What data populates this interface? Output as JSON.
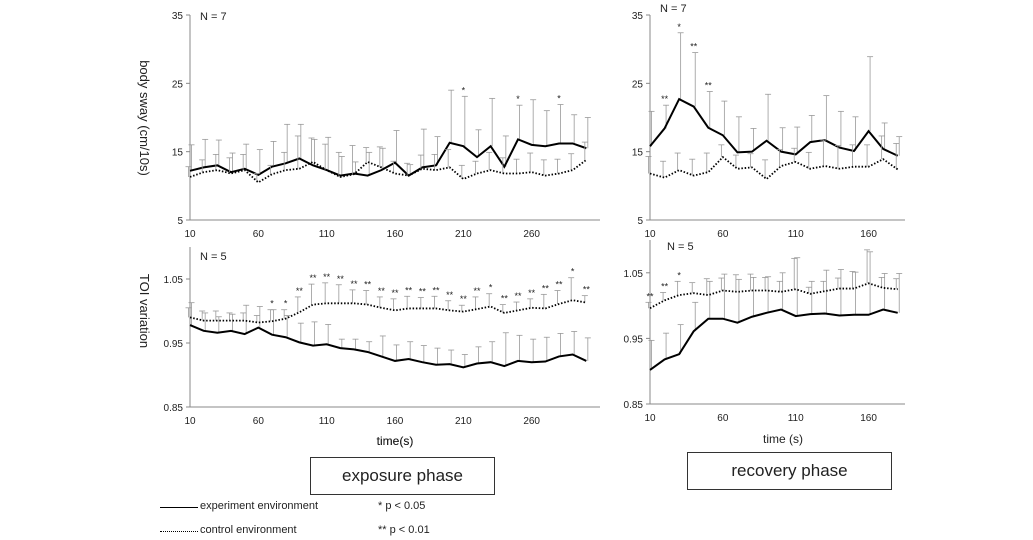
{
  "panels": [
    {
      "id": "sway-exposure",
      "n_label": "N = 7",
      "ylabel": "body sway (cm/10s)",
      "y_ticks": [
        "35",
        "25",
        "15",
        "5"
      ],
      "x_ticks": [
        "10",
        "60",
        "110",
        "160",
        "210",
        "260"
      ],
      "xlabel": "time(s)"
    },
    {
      "id": "sway-recovery",
      "n_label": "N = 7",
      "ylabel": "",
      "y_ticks": [
        "35",
        "25",
        "15",
        "5"
      ],
      "x_ticks": [
        "10",
        "60",
        "110",
        "160"
      ],
      "xlabel": ""
    },
    {
      "id": "toi-exposure",
      "n_label": "N = 5",
      "ylabel": "TOI variation",
      "y_ticks": [
        "1.05",
        "0.95",
        "0.85"
      ],
      "x_ticks": [
        "10",
        "60",
        "110",
        "160",
        "210",
        "260"
      ],
      "xlabel": "time(s)"
    },
    {
      "id": "toi-recovery",
      "n_label": "N = 5",
      "ylabel": "",
      "y_ticks": [
        "1.05",
        "0.95",
        "0.85"
      ],
      "x_ticks": [
        "10",
        "60",
        "110",
        "160"
      ],
      "xlabel": "time (s)"
    }
  ],
  "phase_labels": {
    "exposure": "exposure phase",
    "recovery": "recovery phase"
  },
  "legend": {
    "experiment": "experiment environment",
    "control": "control environment",
    "sig1": "*  p < 0.05",
    "sig2": "** p < 0.01"
  },
  "chart_data": [
    {
      "type": "line",
      "id": "sway-exposure",
      "ylabel": "body sway (cm/10s)",
      "xlabel": "time(s)",
      "ylim": [
        5,
        35
      ],
      "x": [
        10,
        20,
        30,
        40,
        50,
        60,
        70,
        80,
        90,
        100,
        110,
        120,
        130,
        140,
        150,
        160,
        170,
        180,
        190,
        200,
        210,
        220,
        230,
        240,
        250,
        260,
        270,
        280,
        290,
        300
      ],
      "series": [
        {
          "name": "experiment environment",
          "values": [
            12.2,
            12.7,
            13.0,
            12.0,
            12.5,
            11.6,
            12.8,
            13.3,
            14.0,
            13.0,
            12.3,
            11.5,
            11.8,
            11.5,
            12.3,
            13.4,
            11.5,
            12.7,
            13.0,
            16.3,
            15.8,
            14.2,
            15.8,
            12.8,
            16.8,
            16.0,
            15.8,
            16.2,
            16.2,
            15.5
          ],
          "error": [
            3.8,
            4.1,
            3.7,
            2.8,
            3.6,
            3.7,
            3.7,
            5.7,
            5.0,
            3.8,
            4.8,
            2.8,
            1.7,
            3.4,
            3.2,
            4.7,
            1.6,
            5.6,
            4.2,
            7.7,
            7.3,
            4.0,
            7.0,
            4.5,
            5.0,
            6.6,
            5.2,
            5.7,
            4.2,
            4.5
          ],
          "sig": [
            "",
            "",
            "",
            "",
            "",
            "",
            "",
            "",
            "",
            "",
            "",
            "",
            "",
            "",
            "",
            "",
            "",
            "",
            "",
            "",
            "*",
            "",
            "",
            "",
            "*",
            "",
            "",
            "*",
            "",
            ""
          ]
        },
        {
          "name": "control environment",
          "values": [
            11.3,
            12.0,
            12.3,
            11.8,
            12.3,
            10.5,
            11.7,
            12.3,
            12.5,
            13.5,
            12.3,
            11.3,
            11.7,
            13.5,
            12.7,
            11.8,
            11.5,
            12.5,
            12.3,
            12.7,
            11.0,
            11.8,
            12.3,
            11.8,
            11.8,
            12.0,
            11.5,
            11.8,
            12.3,
            13.8
          ],
          "error": [
            1.5,
            1.8,
            2.3,
            2.3,
            2.3,
            1.3,
            1.3,
            2.6,
            4.8,
            3.5,
            3.8,
            3.6,
            4.2,
            2.1,
            3.0,
            1.8,
            1.8,
            2.0,
            2.3,
            2.6,
            2.0,
            1.8,
            2.6,
            2.3,
            2.1,
            2.8,
            2.3,
            2.1,
            2.4,
            2.6
          ],
          "sig": []
        }
      ]
    },
    {
      "type": "line",
      "id": "sway-recovery",
      "ylim": [
        5,
        35
      ],
      "x": [
        10,
        20,
        30,
        40,
        50,
        60,
        70,
        80,
        90,
        100,
        110,
        120,
        130,
        140,
        150,
        160,
        170,
        180
      ],
      "series": [
        {
          "name": "experiment environment",
          "values": [
            15.8,
            18.4,
            22.7,
            21.6,
            18.5,
            17.4,
            14.9,
            15.0,
            16.6,
            15.0,
            14.6,
            16.4,
            16.7,
            15.6,
            15.1,
            18.0,
            15.4,
            14.4
          ],
          "error": [
            5.1,
            3.4,
            9.7,
            7.9,
            5.3,
            5.0,
            5.2,
            3.4,
            6.8,
            3.5,
            4.0,
            3.9,
            6.5,
            5.3,
            5.0,
            10.9,
            3.8,
            2.8
          ],
          "sig": [
            "",
            "**",
            "*",
            "**",
            "**",
            "",
            "",
            "",
            "",
            "",
            "",
            "",
            "",
            "",
            "",
            "",
            "",
            ""
          ]
        },
        {
          "name": "control environment",
          "values": [
            11.8,
            11.2,
            12.3,
            11.5,
            12.0,
            14.2,
            12.5,
            12.7,
            11.0,
            12.9,
            13.5,
            12.5,
            12.9,
            12.5,
            12.8,
            12.8,
            13.9,
            12.4
          ],
          "error": [
            2.5,
            2.4,
            2.5,
            2.4,
            2.8,
            1.8,
            2.0,
            2.0,
            2.8,
            2.4,
            2.0,
            2.4,
            3.8,
            3.4,
            3.2,
            3.2,
            3.4,
            3.8
          ],
          "sig": []
        }
      ]
    },
    {
      "type": "line",
      "id": "toi-exposure",
      "ylabel": "TOI variation",
      "xlabel": "time(s)",
      "ylim": [
        0.85,
        1.1
      ],
      "x": [
        10,
        20,
        30,
        40,
        50,
        60,
        70,
        80,
        90,
        100,
        110,
        120,
        130,
        140,
        150,
        160,
        170,
        180,
        190,
        200,
        210,
        220,
        230,
        240,
        250,
        260,
        270,
        280,
        290,
        300
      ],
      "series": [
        {
          "name": "experiment environment",
          "values": [
            0.978,
            0.969,
            0.966,
            0.969,
            0.964,
            0.974,
            0.963,
            0.959,
            0.951,
            0.946,
            0.948,
            0.942,
            0.94,
            0.936,
            0.929,
            0.922,
            0.925,
            0.92,
            0.916,
            0.917,
            0.912,
            0.918,
            0.92,
            0.914,
            0.922,
            0.92,
            0.921,
            0.929,
            0.932,
            0.922
          ],
          "error": [
            0.035,
            0.028,
            0.025,
            0.026,
            0.045,
            0.033,
            0.039,
            0.034,
            0.03,
            0.037,
            0.031,
            0.014,
            0.016,
            0.016,
            0.032,
            0.025,
            0.027,
            0.026,
            0.026,
            0.022,
            0.02,
            0.026,
            0.032,
            0.052,
            0.04,
            0.036,
            0.038,
            0.036,
            0.036,
            0.036
          ],
          "sig": []
        },
        {
          "name": "control environment",
          "values": [
            0.99,
            0.985,
            0.985,
            0.985,
            0.985,
            0.982,
            0.984,
            0.988,
            0.998,
            1.01,
            1.012,
            1.012,
            1.012,
            1.01,
            1.005,
            1.001,
            1.004,
            1.004,
            1.004,
            1.001,
            0.999,
            1.003,
            1.007,
            0.997,
            1.001,
            1.005,
            1.004,
            1.011,
            1.017,
            1.013
          ],
          "error": [
            0.015,
            0.015,
            0.015,
            0.012,
            0.012,
            0.011,
            0.018,
            0.014,
            0.024,
            0.032,
            0.032,
            0.029,
            0.021,
            0.022,
            0.017,
            0.018,
            0.019,
            0.017,
            0.019,
            0.015,
            0.01,
            0.019,
            0.02,
            0.013,
            0.013,
            0.014,
            0.022,
            0.021,
            0.035,
            0.011
          ],
          "sig": [
            "",
            "",
            "",
            "",
            "",
            "",
            "*",
            "*",
            "**",
            "**",
            "**",
            "**",
            "**",
            "**",
            "**",
            "**",
            "**",
            "**",
            "**",
            "**",
            "**",
            "**",
            "*",
            "**",
            "**",
            "**",
            "**",
            "**",
            "*",
            "**"
          ]
        }
      ]
    },
    {
      "type": "line",
      "id": "toi-recovery",
      "xlabel": "time (s)",
      "ylim": [
        0.85,
        1.1
      ],
      "x": [
        10,
        20,
        30,
        40,
        50,
        60,
        70,
        80,
        90,
        100,
        110,
        120,
        130,
        140,
        150,
        160,
        170,
        180
      ],
      "series": [
        {
          "name": "experiment environment",
          "values": [
            0.902,
            0.918,
            0.926,
            0.961,
            0.98,
            0.98,
            0.974,
            0.983,
            0.989,
            0.994,
            0.984,
            0.987,
            0.988,
            0.985,
            0.986,
            0.986,
            0.994,
            0.989
          ],
          "error": [
            0.045,
            0.04,
            0.045,
            0.044,
            0.057,
            0.068,
            0.066,
            0.06,
            0.055,
            0.056,
            0.089,
            0.05,
            0.066,
            0.07,
            0.065,
            0.096,
            0.055,
            0.06
          ],
          "sig": []
        },
        {
          "name": "control environment",
          "values": [
            0.996,
            1.008,
            1.016,
            1.019,
            1.016,
            1.023,
            1.021,
            1.023,
            1.023,
            1.021,
            1.025,
            1.018,
            1.022,
            1.026,
            1.026,
            1.034,
            1.027,
            1.025
          ],
          "error": [
            0.009,
            0.012,
            0.021,
            0.016,
            0.025,
            0.019,
            0.026,
            0.025,
            0.02,
            0.016,
            0.047,
            0.01,
            0.015,
            0.016,
            0.026,
            0.051,
            0.016,
            0.016
          ],
          "sig": [
            "**",
            "**",
            "*",
            "",
            "",
            "",
            "",
            "",
            "",
            "",
            "",
            "",
            "",
            "",
            "",
            "",
            "",
            ""
          ]
        }
      ]
    }
  ]
}
